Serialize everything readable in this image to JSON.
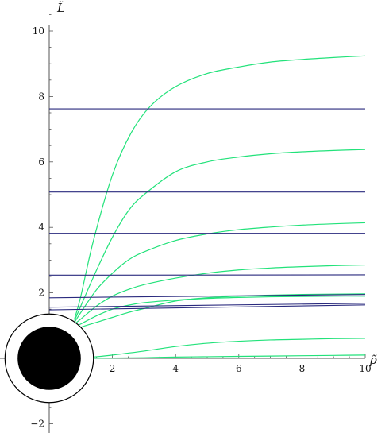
{
  "chart_data": {
    "type": "line",
    "xlabel": "ρ̃",
    "ylabel": "L̃",
    "xlim": [
      0,
      10
    ],
    "ylim": [
      -2,
      10
    ],
    "x_ticks": [
      2,
      4,
      6,
      8,
      10
    ],
    "y_ticks": [
      -2,
      2,
      4,
      6,
      8,
      10
    ],
    "x_tick_labels": [
      "2",
      "4",
      "6",
      "8",
      "10"
    ],
    "y_tick_labels": [
      "−2",
      "2",
      "4",
      "6",
      "8",
      "10"
    ],
    "colors": {
      "green": "#22e27a",
      "blue": "#2a2a7e",
      "axis": "#555555",
      "disk": "#000000"
    },
    "blue_lines": [
      {
        "y_start": 7.62,
        "y_end": 7.62
      },
      {
        "y_start": 5.08,
        "y_end": 5.08
      },
      {
        "y_start": 3.82,
        "y_end": 3.82
      },
      {
        "y_start": 2.54,
        "y_end": 2.55
      },
      {
        "y_start": 1.85,
        "y_end": 1.95
      },
      {
        "y_start": 1.56,
        "y_end": 1.68
      },
      {
        "y_start": 1.48,
        "y_end": 1.63
      }
    ],
    "green_curves": [
      {
        "x": [
          0.8,
          1.0,
          1.4,
          2.0,
          2.6,
          3.2,
          4.0,
          5.0,
          6.0,
          7.0,
          8.0,
          9.0,
          10.0
        ],
        "y": [
          1.2,
          1.9,
          3.6,
          5.6,
          6.9,
          7.7,
          8.3,
          8.7,
          8.9,
          9.05,
          9.13,
          9.19,
          9.24
        ]
      },
      {
        "x": [
          0.8,
          1.0,
          1.5,
          2.0,
          2.5,
          3.0,
          4.0,
          5.0,
          6.0,
          7.0,
          8.0,
          9.0,
          10.0
        ],
        "y": [
          1.15,
          1.6,
          2.7,
          3.7,
          4.5,
          5.0,
          5.7,
          6.0,
          6.15,
          6.25,
          6.31,
          6.35,
          6.38
        ]
      },
      {
        "x": [
          0.8,
          1.0,
          1.5,
          2.0,
          2.5,
          3.0,
          4.0,
          5.0,
          6.0,
          7.0,
          8.0,
          9.0,
          10.0
        ],
        "y": [
          1.1,
          1.4,
          2.1,
          2.6,
          3.0,
          3.25,
          3.6,
          3.8,
          3.93,
          4.01,
          4.07,
          4.11,
          4.14
        ]
      },
      {
        "x": [
          0.8,
          1.0,
          1.5,
          2.0,
          2.5,
          3.0,
          4.0,
          5.0,
          6.0,
          7.0,
          8.0,
          9.0,
          10.0
        ],
        "y": [
          1.05,
          1.2,
          1.6,
          1.9,
          2.1,
          2.25,
          2.45,
          2.6,
          2.7,
          2.76,
          2.8,
          2.83,
          2.85
        ]
      },
      {
        "x": [
          0.8,
          1.0,
          1.5,
          2.0,
          2.5,
          3.0,
          4.0,
          5.0,
          6.0,
          7.0,
          8.0,
          9.0,
          10.0
        ],
        "y": [
          0.95,
          1.05,
          1.3,
          1.5,
          1.62,
          1.7,
          1.78,
          1.83,
          1.86,
          1.88,
          1.89,
          1.9,
          1.9
        ]
      },
      {
        "x": [
          0.8,
          1.0,
          1.5,
          2.0,
          2.5,
          3.0,
          4.0,
          5.0,
          6.0,
          7.0,
          8.0,
          9.0,
          10.0
        ],
        "y": [
          0.85,
          0.95,
          1.1,
          1.25,
          1.4,
          1.52,
          1.75,
          1.85,
          1.9,
          1.93,
          1.95,
          1.96,
          1.97
        ]
      },
      {
        "x": [
          1.0,
          1.5,
          2.0,
          3.0,
          4.0,
          5.0,
          6.0,
          7.0,
          8.0,
          9.0,
          10.0
        ],
        "y": [
          0.02,
          0.05,
          0.1,
          0.22,
          0.36,
          0.46,
          0.52,
          0.56,
          0.58,
          0.6,
          0.61
        ]
      },
      {
        "x": [
          1.0,
          2.0,
          3.0,
          4.0,
          5.0,
          6.0,
          7.0,
          8.0,
          9.0,
          10.0
        ],
        "y": [
          0.0,
          0.01,
          0.02,
          0.04,
          0.05,
          0.06,
          0.07,
          0.08,
          0.09,
          0.1
        ]
      }
    ],
    "disk": {
      "center": [
        0,
        0
      ],
      "inner_radius": 1.0,
      "outer_radius": 1.4
    }
  }
}
